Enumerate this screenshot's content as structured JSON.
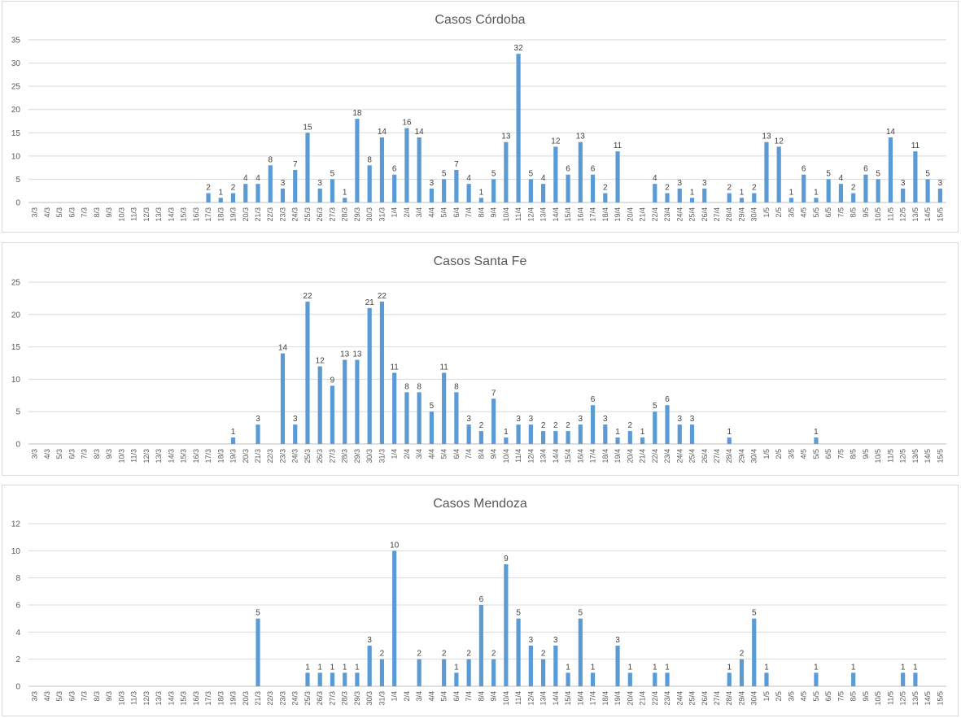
{
  "colors": {
    "bar": "#5b9bd5",
    "grid": "#d9d9d9",
    "text": "#595959"
  },
  "chart_data": [
    {
      "type": "bar",
      "title": "Casos Córdoba",
      "ylim": [
        0,
        35
      ],
      "yticks": [
        0,
        5,
        10,
        15,
        20,
        25,
        30,
        35
      ],
      "grid": true,
      "categories": [
        "3/3",
        "4/3",
        "5/3",
        "6/3",
        "7/3",
        "8/3",
        "9/3",
        "10/3",
        "11/3",
        "12/3",
        "13/3",
        "14/3",
        "15/3",
        "16/3",
        "17/3",
        "18/3",
        "19/3",
        "20/3",
        "21/3",
        "22/3",
        "23/3",
        "24/3",
        "25/3",
        "26/3",
        "27/3",
        "28/3",
        "29/3",
        "30/3",
        "31/3",
        "1/4",
        "2/4",
        "3/4",
        "4/4",
        "5/4",
        "6/4",
        "7/4",
        "8/4",
        "9/4",
        "10/4",
        "11/4",
        "12/4",
        "13/4",
        "14/4",
        "15/4",
        "16/4",
        "17/4",
        "18/4",
        "19/4",
        "20/4",
        "21/4",
        "22/4",
        "23/4",
        "24/4",
        "25/4",
        "26/4",
        "27/4",
        "28/4",
        "29/4",
        "30/4",
        "1/5",
        "2/5",
        "3/5",
        "4/5",
        "5/5",
        "6/5",
        "7/5",
        "8/5",
        "9/5",
        "10/5",
        "11/5",
        "12/5",
        "13/5",
        "14/5",
        "15/5"
      ],
      "values": [
        0,
        0,
        0,
        0,
        0,
        0,
        0,
        0,
        0,
        0,
        0,
        0,
        0,
        0,
        2,
        1,
        2,
        4,
        4,
        8,
        3,
        7,
        15,
        3,
        5,
        1,
        18,
        8,
        14,
        6,
        16,
        14,
        3,
        5,
        7,
        4,
        1,
        5,
        13,
        32,
        5,
        4,
        12,
        6,
        13,
        6,
        2,
        11,
        0,
        0,
        4,
        2,
        3,
        1,
        3,
        0,
        2,
        1,
        2,
        13,
        12,
        1,
        6,
        1,
        5,
        4,
        2,
        6,
        5,
        14,
        3,
        11,
        5,
        3
      ]
    },
    {
      "type": "bar",
      "title": "Casos Santa Fe",
      "ylim": [
        0,
        25
      ],
      "yticks": [
        0,
        5,
        10,
        15,
        20,
        25
      ],
      "grid": true,
      "categories": [
        "3/3",
        "4/3",
        "5/3",
        "6/3",
        "7/3",
        "8/3",
        "9/3",
        "10/3",
        "11/3",
        "12/3",
        "13/3",
        "14/3",
        "15/3",
        "16/3",
        "17/3",
        "18/3",
        "19/3",
        "20/3",
        "21/3",
        "22/3",
        "23/3",
        "24/3",
        "25/3",
        "26/3",
        "27/3",
        "28/3",
        "29/3",
        "30/3",
        "31/3",
        "1/4",
        "2/4",
        "3/4",
        "4/4",
        "5/4",
        "6/4",
        "7/4",
        "8/4",
        "9/4",
        "10/4",
        "11/4",
        "12/4",
        "13/4",
        "14/4",
        "15/4",
        "16/4",
        "17/4",
        "18/4",
        "19/4",
        "20/4",
        "21/4",
        "22/4",
        "23/4",
        "24/4",
        "25/4",
        "26/4",
        "27/4",
        "28/4",
        "29/4",
        "30/4",
        "1/5",
        "2/5",
        "3/5",
        "4/5",
        "5/5",
        "6/5",
        "7/5",
        "8/5",
        "9/5",
        "10/5",
        "11/5",
        "12/5",
        "13/5",
        "14/5",
        "15/5"
      ],
      "values": [
        0,
        0,
        0,
        0,
        0,
        0,
        0,
        0,
        0,
        0,
        0,
        0,
        0,
        0,
        0,
        0,
        1,
        0,
        3,
        0,
        14,
        3,
        22,
        12,
        9,
        13,
        13,
        21,
        22,
        11,
        8,
        8,
        5,
        11,
        8,
        3,
        2,
        7,
        1,
        3,
        3,
        2,
        2,
        2,
        3,
        6,
        3,
        1,
        2,
        1,
        5,
        6,
        3,
        3,
        0,
        0,
        1,
        0,
        0,
        0,
        0,
        0,
        0,
        1,
        0,
        0,
        0,
        0,
        0,
        0,
        0,
        0,
        0,
        0
      ]
    },
    {
      "type": "bar",
      "title": "Casos Mendoza",
      "ylim": [
        0,
        12
      ],
      "yticks": [
        0,
        2,
        4,
        6,
        8,
        10,
        12
      ],
      "grid": true,
      "categories": [
        "3/3",
        "4/3",
        "5/3",
        "6/3",
        "7/3",
        "8/3",
        "9/3",
        "10/3",
        "11/3",
        "12/3",
        "13/3",
        "14/3",
        "15/3",
        "16/3",
        "17/3",
        "18/3",
        "19/3",
        "20/3",
        "21/3",
        "22/3",
        "23/3",
        "24/3",
        "25/3",
        "26/3",
        "27/3",
        "28/3",
        "29/3",
        "30/3",
        "31/3",
        "1/4",
        "2/4",
        "3/4",
        "4/4",
        "5/4",
        "6/4",
        "7/4",
        "8/4",
        "9/4",
        "10/4",
        "11/4",
        "12/4",
        "13/4",
        "14/4",
        "15/4",
        "16/4",
        "17/4",
        "18/4",
        "19/4",
        "20/4",
        "21/4",
        "22/4",
        "23/4",
        "24/4",
        "25/4",
        "26/4",
        "27/4",
        "28/4",
        "29/4",
        "30/4",
        "1/5",
        "2/5",
        "3/5",
        "4/5",
        "5/5",
        "6/5",
        "7/5",
        "8/5",
        "9/5",
        "10/5",
        "11/5",
        "12/5",
        "13/5",
        "14/5",
        "15/5"
      ],
      "values": [
        0,
        0,
        0,
        0,
        0,
        0,
        0,
        0,
        0,
        0,
        0,
        0,
        0,
        0,
        0,
        0,
        0,
        0,
        5,
        0,
        0,
        0,
        1,
        1,
        1,
        1,
        1,
        3,
        2,
        10,
        0,
        2,
        0,
        2,
        1,
        2,
        6,
        2,
        9,
        5,
        3,
        2,
        3,
        1,
        5,
        1,
        0,
        3,
        1,
        0,
        1,
        1,
        0,
        0,
        0,
        0,
        1,
        2,
        5,
        1,
        0,
        0,
        0,
        1,
        0,
        0,
        1,
        0,
        0,
        0,
        1,
        1,
        0,
        0
      ]
    }
  ]
}
